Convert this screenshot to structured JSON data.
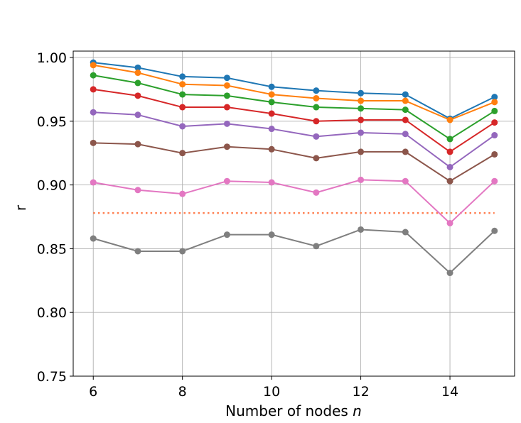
{
  "chart_data": {
    "type": "line",
    "xlabel": "Number of nodes",
    "xlabel_var": "n",
    "ylabel": "r",
    "xlim": [
      5.55,
      15.45
    ],
    "ylim": [
      0.75,
      1.005
    ],
    "xticks": [
      6,
      8,
      10,
      12,
      14
    ],
    "xtick_labels": [
      "6",
      "8",
      "10",
      "12",
      "14"
    ],
    "yticks": [
      0.75,
      0.8,
      0.85,
      0.9,
      0.95,
      1.0
    ],
    "ytick_labels": [
      "0.75",
      "0.80",
      "0.85",
      "0.90",
      "0.95",
      "1.00"
    ],
    "grid": true,
    "x": [
      6,
      7,
      8,
      9,
      10,
      11,
      12,
      13,
      14,
      15
    ],
    "series": [
      {
        "color": "#1f77b4",
        "values": [
          0.996,
          0.992,
          0.985,
          0.984,
          0.977,
          0.974,
          0.972,
          0.971,
          0.952,
          0.969
        ]
      },
      {
        "color": "#ff7f0e",
        "values": [
          0.994,
          0.988,
          0.979,
          0.978,
          0.971,
          0.968,
          0.966,
          0.966,
          0.951,
          0.965
        ]
      },
      {
        "color": "#2ca02c",
        "values": [
          0.986,
          0.98,
          0.971,
          0.97,
          0.965,
          0.961,
          0.96,
          0.959,
          0.936,
          0.958
        ]
      },
      {
        "color": "#d62728",
        "values": [
          0.975,
          0.97,
          0.961,
          0.961,
          0.956,
          0.95,
          0.951,
          0.951,
          0.926,
          0.949
        ]
      },
      {
        "color": "#9467bd",
        "values": [
          0.957,
          0.955,
          0.946,
          0.948,
          0.944,
          0.938,
          0.941,
          0.94,
          0.914,
          0.939
        ]
      },
      {
        "color": "#8c564b",
        "values": [
          0.933,
          0.932,
          0.925,
          0.93,
          0.928,
          0.921,
          0.926,
          0.926,
          0.903,
          0.924
        ]
      },
      {
        "color": "#e377c2",
        "values": [
          0.902,
          0.896,
          0.893,
          0.903,
          0.902,
          0.894,
          0.904,
          0.903,
          0.87,
          0.903
        ]
      },
      {
        "color": "#7f7f7f",
        "values": [
          0.858,
          0.848,
          0.848,
          0.861,
          0.861,
          0.852,
          0.865,
          0.863,
          0.831,
          0.864
        ]
      }
    ],
    "reference_line": {
      "y": 0.878,
      "x_range": [
        6,
        15
      ],
      "color": "#ff7f50",
      "style": "dotted"
    }
  }
}
